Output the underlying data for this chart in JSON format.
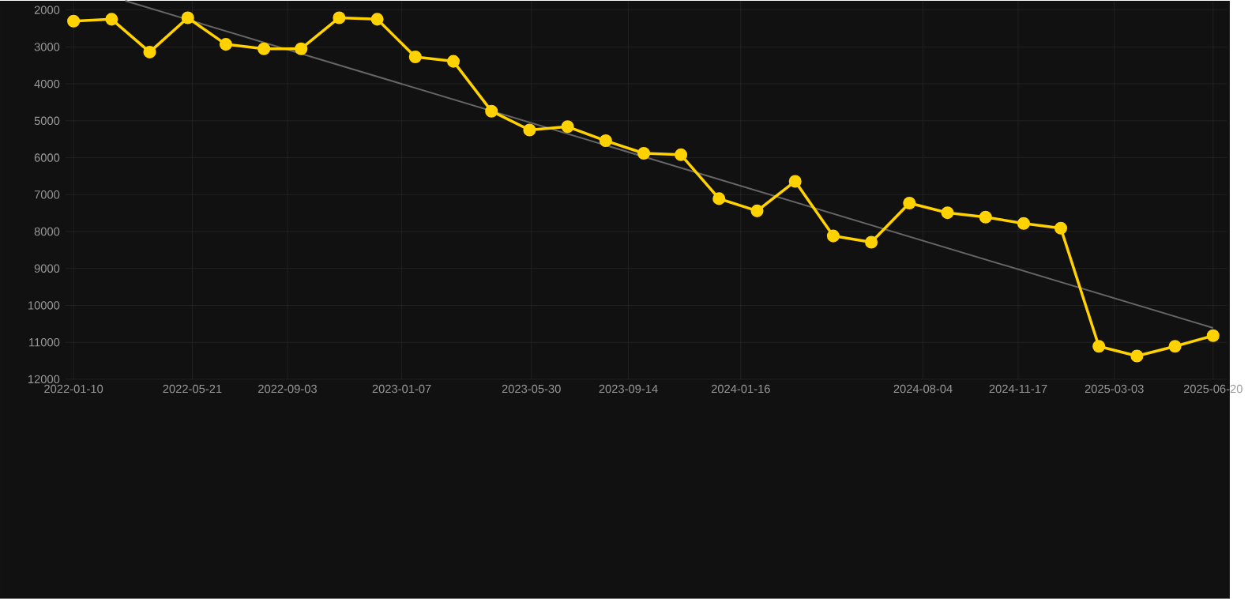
{
  "chart_data": {
    "type": "line",
    "x": [
      "2022-01-10",
      "2022-02-21",
      "2022-04-04",
      "2022-05-16",
      "2022-06-27",
      "2022-08-08",
      "2022-09-18",
      "2022-10-30",
      "2022-12-11",
      "2023-01-22",
      "2023-03-05",
      "2023-04-16",
      "2023-05-28",
      "2023-07-09",
      "2023-08-20",
      "2023-10-01",
      "2023-11-11",
      "2023-12-23",
      "2024-02-03",
      "2024-03-16",
      "2024-04-27",
      "2024-06-08",
      "2024-07-20",
      "2024-08-31",
      "2024-10-12",
      "2024-11-23",
      "2025-01-03",
      "2025-02-14",
      "2025-03-28",
      "2025-05-09",
      "2025-06-20"
    ],
    "series": [
      {
        "color": "#ffd200",
        "marker": "circle",
        "values": [
          2300,
          2250,
          3140,
          2210,
          2930,
          3050,
          3050,
          2210,
          2250,
          3270,
          3390,
          4740,
          5250,
          5160,
          5540,
          5880,
          5920,
          7110,
          7440,
          6640,
          8120,
          8290,
          7230,
          7490,
          7610,
          7780,
          7910,
          11110,
          11370,
          11110,
          10820
        ]
      },
      {
        "color": "#666666",
        "marker": "none",
        "x": [
          "2022-03-08",
          "2025-06-20"
        ],
        "values": [
          1750,
          10610
        ]
      }
    ],
    "xlim": [
      "2022-01-01",
      "2025-07-05"
    ],
    "xticks": [
      "2022-01-10",
      "2022-05-21",
      "2022-09-03",
      "2023-01-07",
      "2023-05-30",
      "2023-09-14",
      "2024-01-16",
      "2024-08-04",
      "2024-11-17",
      "2025-03-03",
      "2025-06-20"
    ],
    "ylim": [
      12000,
      1750
    ],
    "yticks": [
      2000,
      3000,
      4000,
      5000,
      6000,
      7000,
      8000,
      9000,
      10000,
      11000,
      12000
    ],
    "grid": true
  }
}
